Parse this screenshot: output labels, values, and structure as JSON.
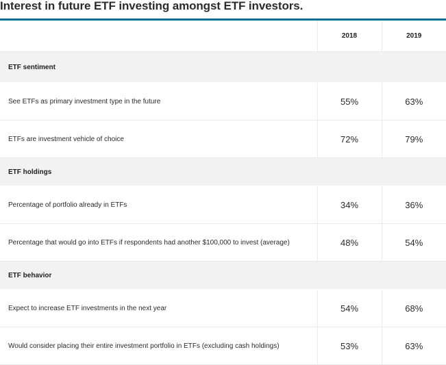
{
  "title": "Interest in future ETF investing amongst ETF investors.",
  "colors": {
    "accent_rule": "#0f6d99",
    "section_bg": "#f2f2f2"
  },
  "chart_data": {
    "type": "table",
    "title": "Interest in future ETF investing amongst ETF investors.",
    "columns": [
      "2018",
      "2019"
    ],
    "sections": [
      {
        "name": "ETF sentiment",
        "rows": [
          {
            "label": "See ETFs as primary investment type in the future",
            "values": [
              "55%",
              "63%"
            ]
          },
          {
            "label": "ETFs are investment vehicle of choice",
            "values": [
              "72%",
              "79%"
            ]
          }
        ]
      },
      {
        "name": "ETF holdings",
        "rows": [
          {
            "label": "Percentage of portfolio already in ETFs",
            "values": [
              "34%",
              "36%"
            ]
          },
          {
            "label": "Percentage that would go into ETFs if respondents had another $100,000 to invest (average)",
            "values": [
              "48%",
              "54%"
            ]
          }
        ]
      },
      {
        "name": "ETF behavior",
        "rows": [
          {
            "label": "Expect to increase ETF investments in the next year",
            "values": [
              "54%",
              "68%"
            ]
          },
          {
            "label": "Would consider placing their entire investment portfolio in ETFs (excluding cash holdings)",
            "values": [
              "53%",
              "63%"
            ]
          }
        ]
      }
    ]
  }
}
